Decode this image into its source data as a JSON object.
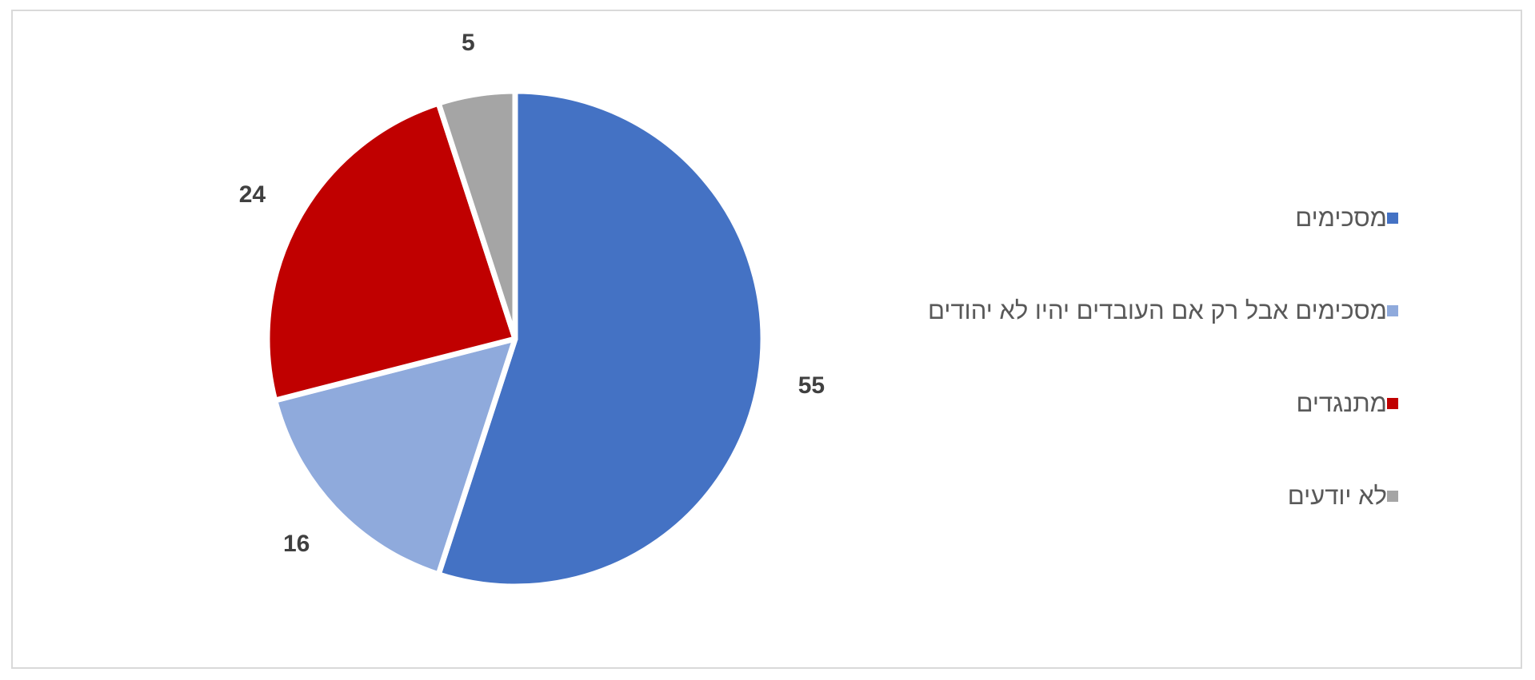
{
  "chart_data": {
    "type": "pie",
    "title": "",
    "categories": [
      "מסכימים",
      "מסכימים אבל רק אם העובדים יהיו לא יהודים",
      "מתנגדים",
      "לא יודעים"
    ],
    "values": [
      55,
      16,
      24,
      5
    ],
    "colors": [
      "#4472C4",
      "#8FAADC",
      "#C00000",
      "#A5A5A5"
    ],
    "start_angle_deg": 0,
    "direction": "clockwise",
    "data_labels": [
      "55",
      "16",
      "24",
      "5"
    ],
    "legend_position": "right"
  }
}
